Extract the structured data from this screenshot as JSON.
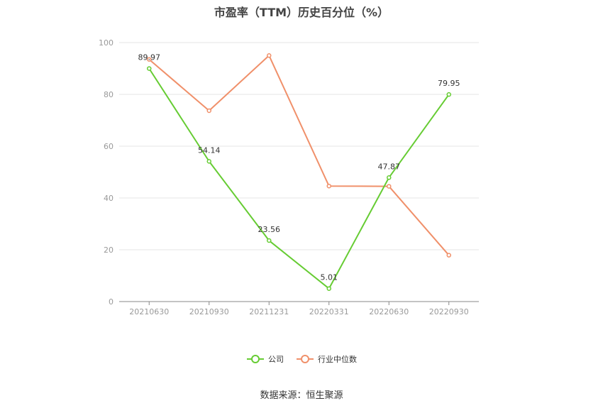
{
  "chart_data": {
    "type": "line",
    "title": "市盈率（TTM）历史百分位（%）",
    "categories": [
      "20210630",
      "20210930",
      "20211231",
      "20220331",
      "20220630",
      "20220930"
    ],
    "series": [
      {
        "name": "公司",
        "color": "#66cc33",
        "values": [
          89.97,
          54.14,
          23.56,
          5.01,
          47.87,
          79.95
        ],
        "labels": [
          "89.97",
          "54.14",
          "23.56",
          "5.01",
          "47.87",
          "79.95"
        ]
      },
      {
        "name": "行业中位数",
        "color": "#f0906a",
        "values": [
          93.5,
          73.7,
          95.0,
          44.6,
          44.5,
          17.9
        ]
      }
    ],
    "yticks": [
      "0",
      "20",
      "40",
      "60",
      "80",
      "100"
    ],
    "ylim": [
      0,
      100
    ],
    "grid": true,
    "legend_position": "bottom-center"
  },
  "source": "数据来源：恒生聚源"
}
